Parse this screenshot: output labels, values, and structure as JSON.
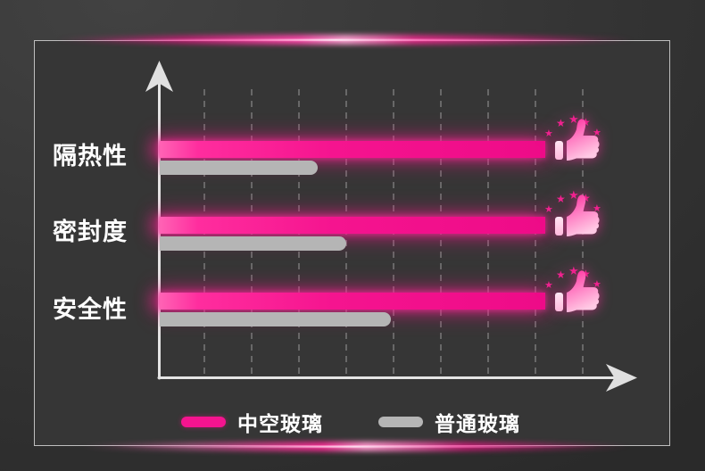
{
  "chart_data": {
    "type": "bar",
    "orientation": "horizontal",
    "title": "",
    "categories": [
      "隔热性",
      "密封度",
      "安全性"
    ],
    "series": [
      {
        "name": "中空玻璃",
        "color": "#f5148f",
        "values": [
          95,
          95,
          95
        ]
      },
      {
        "name": "普通玻璃",
        "color": "#b5b5b5",
        "values": [
          39,
          46,
          57
        ]
      }
    ],
    "value_axis": {
      "range": [
        0,
        100
      ],
      "tick_labels_shown": false
    },
    "grid": {
      "vertical_dashed_gridlines": true,
      "gridline_color": "#9a9a9a"
    },
    "legend_position": "bottom",
    "annotations": [
      "每条中空玻璃(粉色)条形末端带有点赞拇指图标和五颗星",
      "图表无数值刻度标签，仅为相对比较"
    ]
  },
  "legend": {
    "items": [
      {
        "label": "中空玻璃",
        "color": "#f5148f"
      },
      {
        "label": "普通玻璃",
        "color": "#b5b5b5"
      }
    ]
  },
  "icons": {
    "thumbs_up": "thumbs-up-icon",
    "stars": "★★★★★",
    "axis_arrow_up": "arrow-up-icon",
    "axis_arrow_right": "arrow-right-icon"
  },
  "colors": {
    "accent_pink": "#f5148f",
    "bar_gray": "#b5b5b5",
    "axis": "#e4e4e4",
    "panel_background": "#363636",
    "outer_background": "#333333",
    "label_text": "#ffffff"
  }
}
